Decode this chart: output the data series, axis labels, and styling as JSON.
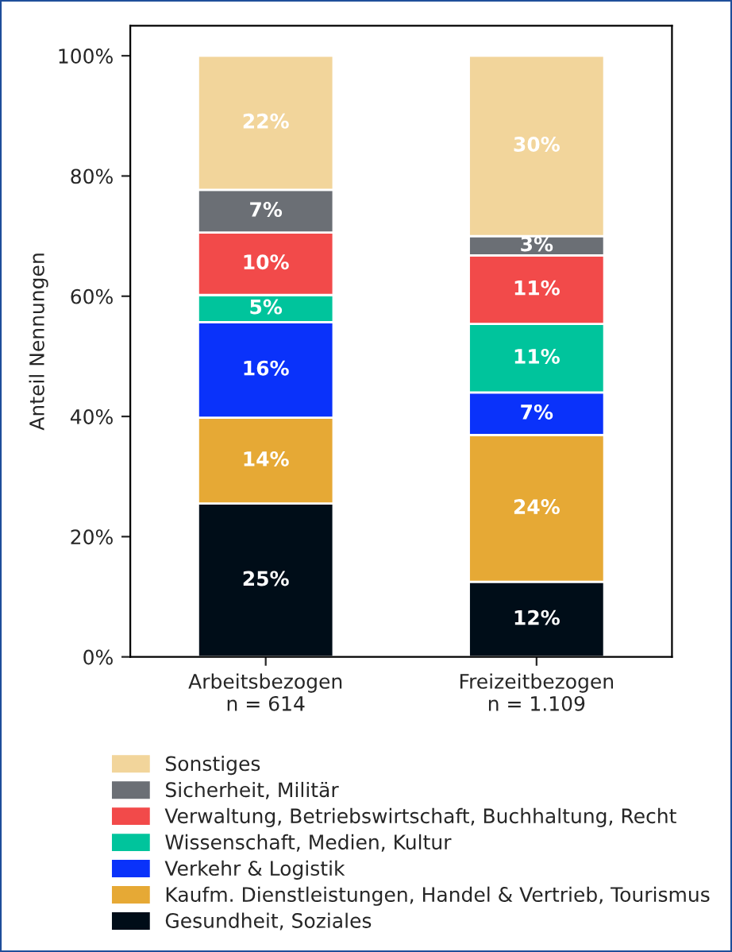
{
  "chart_data": {
    "type": "bar",
    "stacked": true,
    "ylabel": "Anteil Nennungen",
    "categories": [
      "Arbeitsbezogen\nn = 614",
      "Freizeitbezogen\nn = 1.109"
    ],
    "series": [
      {
        "name": "Gesundheit, Soziales",
        "color": "#000d18",
        "values": [
          25.5,
          12.5
        ],
        "value_labels": [
          "25%",
          "12%"
        ]
      },
      {
        "name": "Kaufm. Dienstleistungen, Handel & Vertrieb, Tourismus",
        "color": "#e6a935",
        "values": [
          14.3,
          24.4
        ],
        "value_labels": [
          "14%",
          "24%"
        ]
      },
      {
        "name": "Verkehr & Logistik",
        "color": "#0a32fa",
        "values": [
          15.9,
          7.1
        ],
        "value_labels": [
          "16%",
          "7%"
        ]
      },
      {
        "name": "Wissenschaft, Medien, Kultur",
        "color": "#00c49c",
        "values": [
          4.5,
          11.4
        ],
        "value_labels": [
          "5%",
          "11%"
        ]
      },
      {
        "name": "Verwaltung, Betriebswirtschaft, Buchhaltung, Recht",
        "color": "#f24a4a",
        "values": [
          10.4,
          11.4
        ],
        "value_labels": [
          "10%",
          "11%"
        ]
      },
      {
        "name": "Sicherheit, Militär",
        "color": "#6b6f75",
        "values": [
          7.1,
          3.2
        ],
        "value_labels": [
          "7%",
          "3%"
        ]
      },
      {
        "name": "Sonstiges",
        "color": "#f2d59b",
        "values": [
          22.3,
          30.0
        ],
        "value_labels": [
          "22%",
          "30%"
        ]
      }
    ],
    "ylim": [
      0,
      105
    ],
    "yticks": [
      {
        "value": 0,
        "label": "0%"
      },
      {
        "value": 20,
        "label": "20%"
      },
      {
        "value": 40,
        "label": "40%"
      },
      {
        "value": 60,
        "label": "60%"
      },
      {
        "value": 80,
        "label": "80%"
      },
      {
        "value": 100,
        "label": "100%"
      }
    ],
    "legend": "bottom",
    "grid": false
  }
}
